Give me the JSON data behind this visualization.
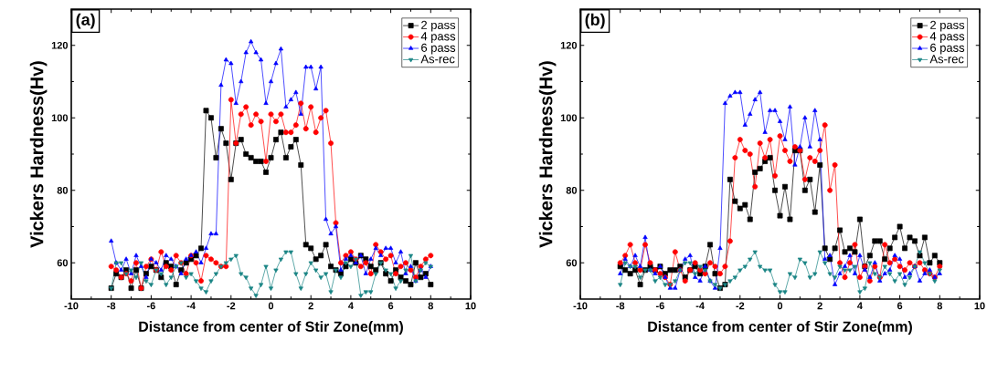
{
  "chart_data": [
    {
      "type": "line",
      "title": "(a)",
      "xlabel": "Distance from center of Stir Zone(mm)",
      "ylabel": "Vickers Hardness(Hv)",
      "xlim": [
        -10,
        10
      ],
      "xticks": [
        -10,
        -8,
        -6,
        -4,
        -2,
        0,
        2,
        4,
        6,
        8,
        10
      ],
      "ylim": [
        50,
        130
      ],
      "yticks": [
        60,
        80,
        100,
        120
      ],
      "legend": "top right",
      "grid": false,
      "x": [
        -8,
        -7.75,
        -7.5,
        -7.25,
        -7,
        -6.75,
        -6.5,
        -6.25,
        -6,
        -5.75,
        -5.5,
        -5.25,
        -5,
        -4.75,
        -4.5,
        -4.25,
        -4,
        -3.75,
        -3.5,
        -3.25,
        -3,
        -2.75,
        -2.5,
        -2.25,
        -2,
        -1.75,
        -1.5,
        -1.25,
        -1,
        -0.75,
        -0.5,
        -0.25,
        0,
        0.25,
        0.5,
        0.75,
        1,
        1.25,
        1.5,
        1.75,
        2,
        2.25,
        2.5,
        2.75,
        3,
        3.25,
        3.5,
        3.75,
        4,
        4.25,
        4.5,
        4.75,
        5,
        5.25,
        5.5,
        5.75,
        6,
        6.25,
        6.5,
        6.75,
        7,
        7.25,
        7.5,
        7.75,
        8
      ],
      "series": [
        {
          "name": "2 pass",
          "color": "#000000",
          "marker": "square",
          "values": [
            53,
            57,
            56,
            58,
            53,
            58,
            53,
            57,
            59,
            58,
            56,
            60,
            59,
            54,
            58,
            60,
            61,
            62,
            64,
            102,
            100,
            89,
            97,
            93,
            83,
            93,
            94,
            90,
            89,
            88,
            88,
            85,
            89,
            94,
            96,
            89,
            92,
            94,
            87,
            65,
            64,
            61,
            62,
            65,
            59,
            58,
            57,
            59,
            61,
            60,
            62,
            61,
            59,
            58,
            60,
            57,
            55,
            58,
            56,
            55,
            54,
            60,
            56,
            57,
            54
          ]
        },
        {
          "name": "4 pass",
          "color": "#ff0000",
          "marker": "circle",
          "values": [
            59,
            58,
            56,
            57,
            55,
            60,
            53,
            59,
            61,
            58,
            63,
            59,
            58,
            62,
            60,
            57,
            62,
            60,
            55,
            62,
            61,
            60,
            59,
            59,
            105,
            93,
            101,
            103,
            98,
            101,
            99,
            88,
            101,
            99,
            101,
            96,
            96,
            98,
            104,
            97,
            103,
            96,
            100,
            102,
            93,
            71,
            60,
            62,
            63,
            61,
            59,
            60,
            57,
            65,
            63,
            61,
            62,
            57,
            59,
            60,
            58,
            56,
            59,
            61,
            62
          ]
        },
        {
          "name": "6 pass",
          "color": "#0000ff",
          "marker": "triangle",
          "values": [
            66,
            60,
            58,
            61,
            57,
            62,
            59,
            56,
            61,
            60,
            58,
            62,
            61,
            59,
            57,
            61,
            62,
            63,
            60,
            64,
            68,
            68,
            109,
            116,
            115,
            104,
            110,
            118,
            121,
            118,
            116,
            104,
            110,
            115,
            119,
            103,
            105,
            107,
            101,
            114,
            114,
            108,
            114,
            72,
            68,
            70,
            58,
            61,
            62,
            60,
            62,
            57,
            61,
            64,
            62,
            64,
            64,
            60,
            63,
            57,
            59,
            55,
            58,
            56,
            59
          ]
        },
        {
          "name": "As-rec",
          "color": "#1a8585",
          "marker": "triangle-down",
          "values": [
            53,
            60,
            60,
            57,
            58,
            56,
            60,
            55,
            54,
            58,
            57,
            54,
            56,
            59,
            60,
            56,
            57,
            55,
            53,
            52,
            55,
            57,
            59,
            60,
            61,
            62,
            57,
            56,
            53,
            51,
            54,
            59,
            53,
            58,
            61,
            63,
            63,
            57,
            53,
            57,
            60,
            58,
            56,
            57,
            52,
            58,
            56,
            60,
            59,
            61,
            51,
            52,
            52,
            57,
            60,
            58,
            57,
            53,
            55,
            58,
            62,
            55,
            58,
            60,
            59
          ]
        }
      ]
    },
    {
      "type": "line",
      "title": "(b)",
      "xlabel": "Distance from center of Stir Zone(mm)",
      "ylabel": "Vickers Hardness(Hv)",
      "xlim": [
        -10,
        10
      ],
      "xticks": [
        -10,
        -8,
        -6,
        -4,
        -2,
        0,
        2,
        4,
        6,
        8,
        10
      ],
      "ylim": [
        50,
        130
      ],
      "yticks": [
        60,
        80,
        100,
        120
      ],
      "legend": "top right",
      "grid": false,
      "x": [
        -8,
        -7.75,
        -7.5,
        -7.25,
        -7,
        -6.75,
        -6.5,
        -6.25,
        -6,
        -5.75,
        -5.5,
        -5.25,
        -5,
        -4.75,
        -4.5,
        -4.25,
        -4,
        -3.75,
        -3.5,
        -3.25,
        -3,
        -2.75,
        -2.5,
        -2.25,
        -2,
        -1.75,
        -1.5,
        -1.25,
        -1,
        -0.75,
        -0.5,
        -0.25,
        0,
        0.25,
        0.5,
        0.75,
        1,
        1.25,
        1.5,
        1.75,
        2,
        2.25,
        2.5,
        2.75,
        3,
        3.25,
        3.5,
        3.75,
        4,
        4.25,
        4.5,
        4.75,
        5,
        5.25,
        5.5,
        5.75,
        6,
        6.25,
        6.5,
        6.75,
        7,
        7.25,
        7.5,
        7.75,
        8
      ],
      "series": [
        {
          "name": "2 pass",
          "color": "#000000",
          "marker": "square",
          "values": [
            59,
            58,
            57,
            58,
            54,
            58,
            59,
            58,
            59,
            57,
            58,
            58,
            59,
            56,
            58,
            59,
            57,
            59,
            65,
            57,
            53,
            54,
            83,
            77,
            75,
            76,
            72,
            85,
            86,
            88,
            89,
            80,
            73,
            81,
            72,
            91,
            91,
            80,
            83,
            74,
            87,
            64,
            61,
            64,
            69,
            63,
            64,
            63,
            72,
            59,
            62,
            66,
            66,
            61,
            64,
            67,
            70,
            64,
            67,
            66,
            62,
            67,
            60,
            62,
            60
          ]
        },
        {
          "name": "4 pass",
          "color": "#ff0000",
          "marker": "circle",
          "values": [
            60,
            62,
            65,
            60,
            58,
            65,
            60,
            58,
            57,
            56,
            54,
            63,
            58,
            55,
            58,
            60,
            58,
            57,
            60,
            59,
            57,
            59,
            66,
            89,
            94,
            91,
            90,
            81,
            93,
            89,
            94,
            84,
            95,
            91,
            88,
            92,
            91,
            83,
            89,
            88,
            91,
            98,
            80,
            87,
            60,
            56,
            60,
            65,
            56,
            59,
            55,
            59,
            56,
            65,
            60,
            61,
            59,
            58,
            60,
            59,
            60,
            58,
            57,
            56,
            59
          ]
        },
        {
          "name": "6 pass",
          "color": "#0000ff",
          "marker": "triangle",
          "values": [
            57,
            61,
            59,
            62,
            59,
            67,
            58,
            57,
            59,
            56,
            53,
            53,
            58,
            61,
            62,
            56,
            55,
            59,
            55,
            53,
            64,
            104,
            106,
            107,
            107,
            98,
            101,
            105,
            107,
            96,
            102,
            102,
            99,
            94,
            103,
            87,
            92,
            100,
            92,
            102,
            94,
            61,
            62,
            54,
            57,
            59,
            62,
            57,
            62,
            58,
            56,
            60,
            55,
            57,
            58,
            62,
            61,
            56,
            57,
            59,
            55,
            57,
            58,
            56,
            57
          ]
        },
        {
          "name": "As-rec",
          "color": "#1a8585",
          "marker": "triangle-down",
          "values": [
            54,
            60,
            59,
            59,
            56,
            58,
            58,
            55,
            56,
            54,
            54,
            55,
            58,
            60,
            60,
            57,
            59,
            58,
            55,
            54,
            53,
            54,
            55,
            56,
            58,
            59,
            61,
            63,
            59,
            58,
            58,
            54,
            52,
            52,
            57,
            56,
            61,
            60,
            56,
            57,
            63,
            60,
            57,
            56,
            59,
            58,
            58,
            59,
            52,
            53,
            60,
            57,
            56,
            59,
            57,
            55,
            57,
            54,
            56,
            59,
            63,
            60,
            57,
            55,
            58
          ]
        }
      ]
    }
  ]
}
